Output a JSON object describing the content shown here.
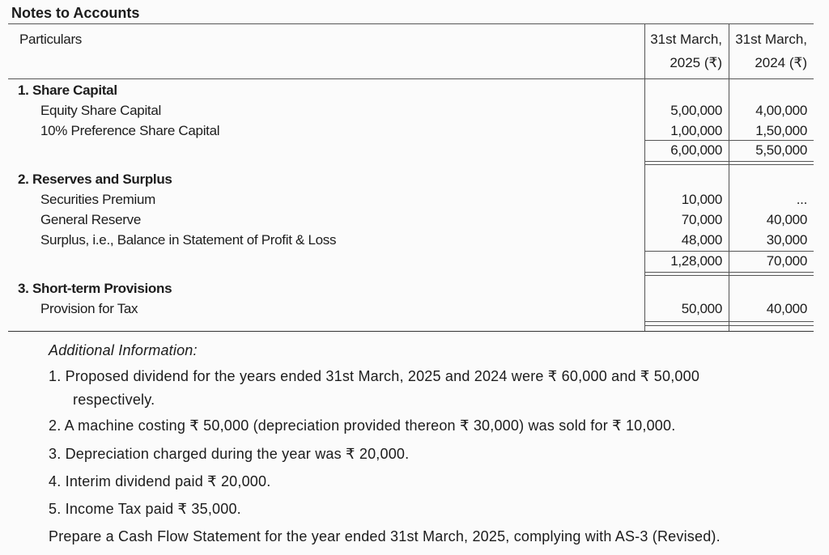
{
  "title": "Notes to Accounts",
  "table": {
    "header": {
      "particulars": "Particulars",
      "col1_line1": "31st March,",
      "col1_line2": "2025 (₹)",
      "col2_line1": "31st March,",
      "col2_line2": "2024 (₹)"
    },
    "notes": [
      {
        "heading": "1.  Share Capital",
        "items": [
          {
            "label": "Equity Share Capital",
            "v2025": "5,00,000",
            "v2024": "4,00,000"
          },
          {
            "label": "10% Preference Share Capital",
            "v2025": "1,00,000",
            "v2024": "1,50,000"
          }
        ],
        "total2025": "6,00,000",
        "total2024": "5,50,000"
      },
      {
        "heading": "2.  Reserves and Surplus",
        "items": [
          {
            "label": "Securities Premium",
            "v2025": "10,000",
            "v2024": "..."
          },
          {
            "label": "General Reserve",
            "v2025": "70,000",
            "v2024": "40,000"
          },
          {
            "label": "Surplus, i.e., Balance in Statement of Profit & Loss",
            "v2025": "48,000",
            "v2024": "30,000"
          }
        ],
        "total2025": "1,28,000",
        "total2024": "70,000"
      },
      {
        "heading": "3.  Short-term Provisions",
        "items": [
          {
            "label": "Provision for Tax",
            "v2025": "50,000",
            "v2024": "40,000"
          }
        ]
      }
    ]
  },
  "additional": {
    "heading": "Additional Information:",
    "items": [
      "1.  Proposed dividend for the years ended 31st March, 2025 and 2024 were ₹ 60,000 and ₹ 50,000",
      "respectively.",
      "2.  A machine costing ₹ 50,000 (depreciation provided thereon ₹ 30,000) was sold for ₹ 10,000.",
      "3.  Depreciation charged during the year was ₹ 20,000.",
      "4.  Interim dividend paid ₹ 20,000.",
      "5.  Income Tax paid ₹ 35,000."
    ],
    "task": "Prepare a Cash Flow Statement for the year ended 31st March, 2025, complying with AS-3 (Revised)."
  }
}
